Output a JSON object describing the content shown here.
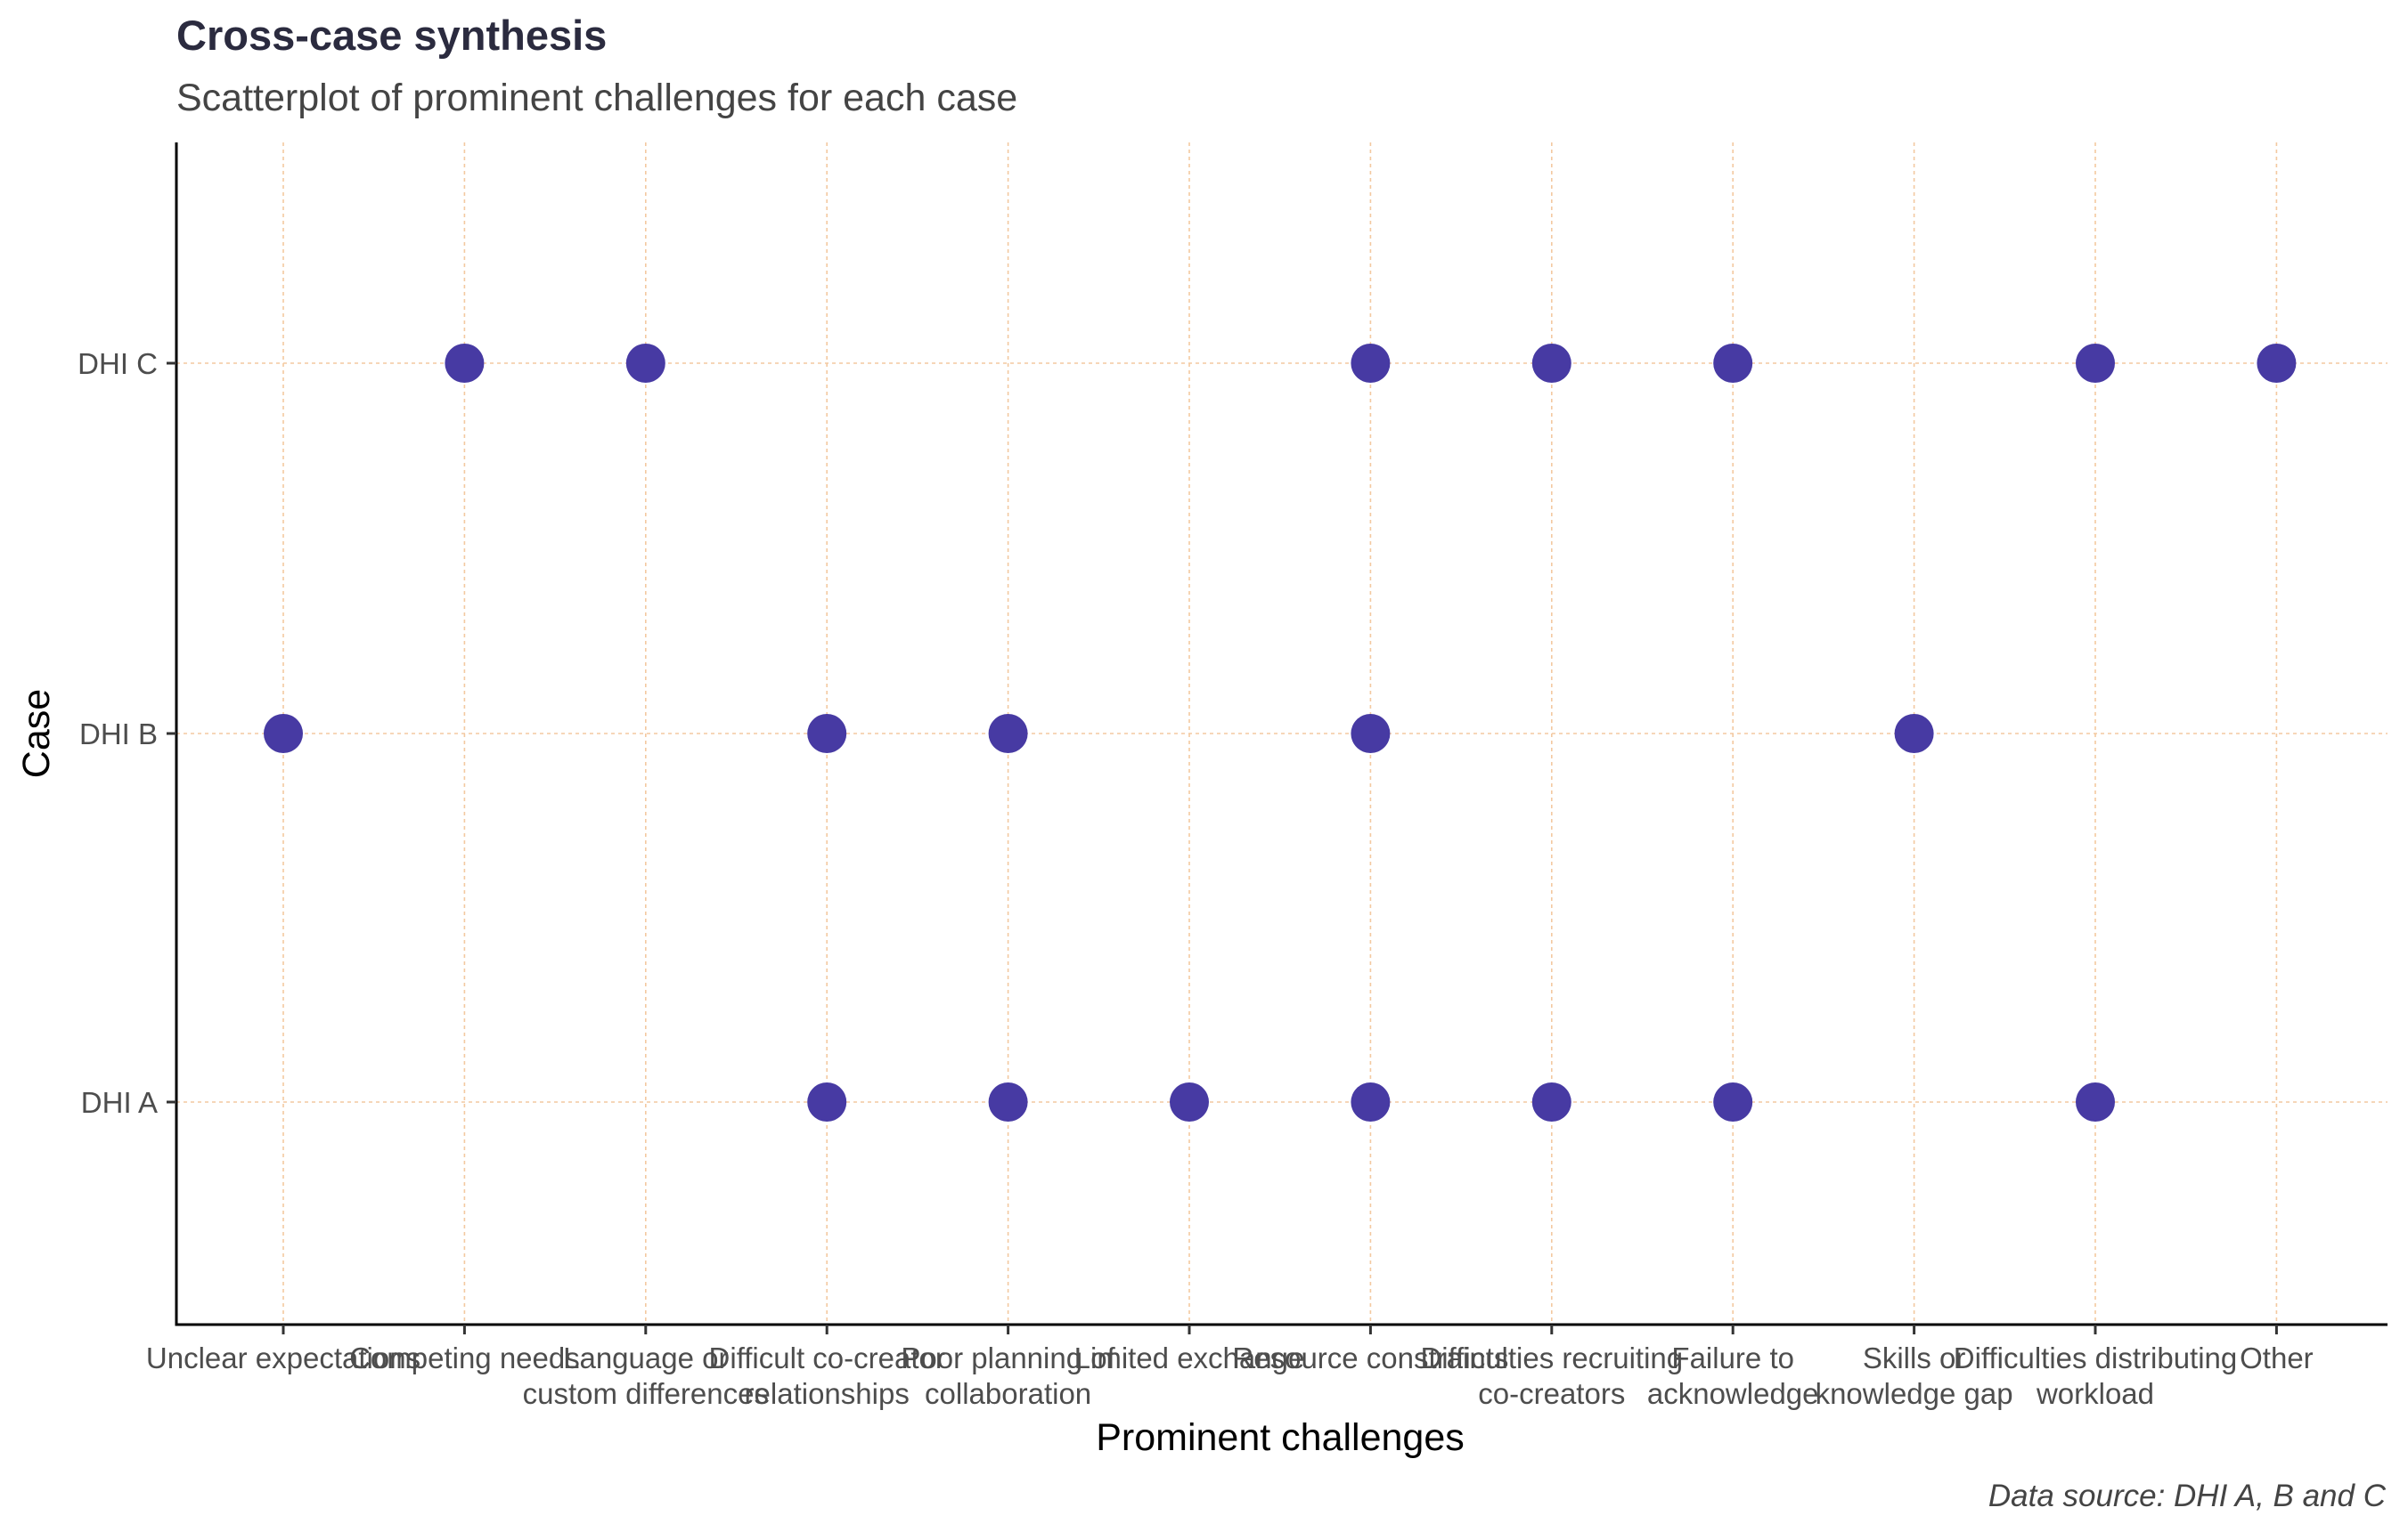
{
  "chart_data": {
    "type": "scatter",
    "title": "Cross-case synthesis",
    "subtitle": "Scatterplot of prominent challenges for each case",
    "xlabel": "Prominent challenges",
    "ylabel": "Case",
    "caption": "Data source: DHI A, B and C",
    "categories": [
      [
        "Unclear expectations"
      ],
      [
        "Competing needs"
      ],
      [
        "Language or",
        "custom differences"
      ],
      [
        "Difficult co-creator",
        "relationships"
      ],
      [
        "Poor planning of",
        "collaboration"
      ],
      [
        "Limited exchange"
      ],
      [
        "Resource constraints"
      ],
      [
        "Difficulties recruiting",
        "co-creators"
      ],
      [
        "Failure to",
        "acknowledge"
      ],
      [
        "Skills or",
        "knowledge gap"
      ],
      [
        "Difficulties distributing",
        "workload"
      ],
      [
        "Other"
      ]
    ],
    "cases": [
      "DHI A",
      "DHI B",
      "DHI C"
    ],
    "points": [
      {
        "case": "DHI A",
        "x": [
          3,
          4,
          5,
          6,
          7,
          8,
          10
        ]
      },
      {
        "case": "DHI B",
        "x": [
          0,
          3,
          4,
          6,
          9
        ]
      },
      {
        "case": "DHI C",
        "x": [
          1,
          2,
          6,
          7,
          8,
          10,
          11
        ]
      }
    ],
    "grid": true,
    "grid_style": "dotted",
    "axis_lines": "left-bottom",
    "colors": {
      "point": "#473aa3",
      "grid": "#f3c9a0"
    }
  }
}
